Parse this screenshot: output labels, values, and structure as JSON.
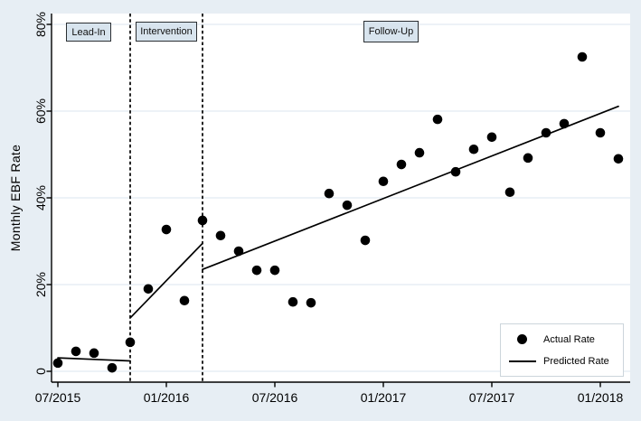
{
  "figure": {
    "background_color": "#e7eef4",
    "plot_background": "#ffffff",
    "gridline_color": "#e2ebf2",
    "period_box_fill": "#d8e4ee",
    "marker_color": "#000000",
    "line_color": "#000000",
    "periods": [
      {
        "label": "Lead-In"
      },
      {
        "label": "Intervention"
      },
      {
        "label": "Follow-Up"
      }
    ],
    "legend": {
      "actual_label": "Actual Rate",
      "predicted_label": "Predicted Rate"
    }
  },
  "chart_data": {
    "type": "scatter",
    "title": "",
    "xlabel": "",
    "ylabel": "Monthly EBF Rate",
    "grid": true,
    "legend_position": "bottom-right",
    "y_axis_unit": "%",
    "ylim": [
      0,
      80
    ],
    "y_ticks": [
      {
        "value": 0,
        "label": "0"
      },
      {
        "value": 20,
        "label": "20%"
      },
      {
        "value": 40,
        "label": "40%"
      },
      {
        "value": 60,
        "label": "60%"
      },
      {
        "value": 80,
        "label": "80%"
      }
    ],
    "x_ticks": [
      "07/2015",
      "01/2016",
      "07/2016",
      "01/2017",
      "07/2017",
      "01/2018"
    ],
    "x": [
      "07/2015",
      "08/2015",
      "09/2015",
      "10/2015",
      "11/2015",
      "12/2015",
      "01/2016",
      "02/2016",
      "03/2016",
      "04/2016",
      "05/2016",
      "06/2016",
      "07/2016",
      "08/2016",
      "09/2016",
      "10/2016",
      "11/2016",
      "12/2016",
      "01/2017",
      "02/2017",
      "03/2017",
      "04/2017",
      "05/2017",
      "06/2017",
      "07/2017",
      "08/2017",
      "09/2017",
      "10/2017",
      "11/2017",
      "12/2017",
      "01/2018",
      "02/2018"
    ],
    "series": [
      {
        "name": "Actual Rate",
        "style": "scatter",
        "values": [
          1.9,
          4.6,
          4.2,
          0.8,
          6.7,
          19.0,
          32.7,
          16.3,
          34.8,
          31.3,
          27.7,
          23.3,
          23.3,
          16.0,
          15.8,
          41.0,
          38.3,
          30.2,
          43.8,
          47.7,
          50.4,
          58.1,
          46.0,
          51.2,
          54.0,
          41.3,
          49.2,
          55.0,
          57.1,
          72.5,
          55.0,
          49.0
        ]
      },
      {
        "name": "Predicted Rate",
        "style": "line",
        "segments": [
          {
            "period": "Lead-In",
            "start_month": "07/2015",
            "start_value": 3.1,
            "end_month": "11/2015",
            "end_value": 2.4
          },
          {
            "period": "Intervention",
            "start_month": "11/2015",
            "start_value": 12.3,
            "end_month": "03/2016",
            "end_value": 29.5
          },
          {
            "period": "Follow-Up",
            "start_month": "03/2016",
            "start_value": 23.5,
            "end_month": "02/2018",
            "end_value": 61.1
          }
        ]
      }
    ],
    "reference_lines": [
      {
        "month": "11/2015",
        "style": "dashed"
      },
      {
        "month": "03/2016",
        "style": "dashed"
      }
    ],
    "annotations": [
      {
        "label": "Lead-In"
      },
      {
        "label": "Intervention"
      },
      {
        "label": "Follow-Up"
      }
    ]
  }
}
